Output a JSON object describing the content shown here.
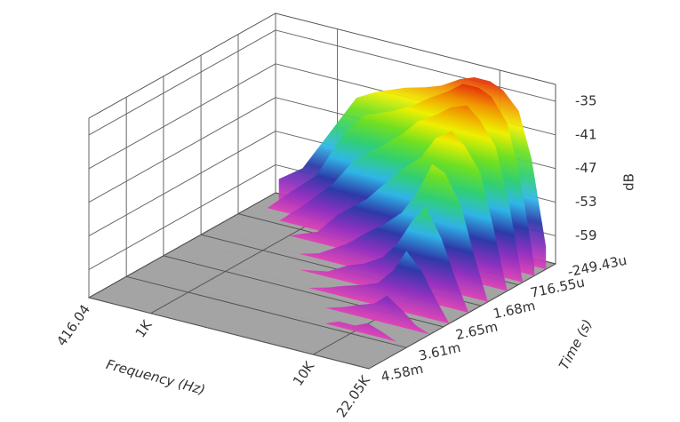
{
  "chart_data": {
    "type": "waterfall",
    "x_label": "Frequency (Hz)",
    "y_label": "Time (s)",
    "z_label": "dB",
    "xscale": "log",
    "xlim": [
      416.04,
      22050
    ],
    "xticks": [
      416.04,
      {
        "value": 1000,
        "label": "1K"
      },
      {
        "value": 10000,
        "label": "10K"
      },
      {
        "value": 22050,
        "label": "22.05K"
      }
    ],
    "ylim": [
      -0.00024943,
      0.00458
    ],
    "yticks": [
      {
        "value": -0.00024943,
        "label": "-249.43u"
      },
      {
        "value": 0.00071655,
        "label": "716.55u"
      },
      {
        "value": 0.00168,
        "label": "1.68m"
      },
      {
        "value": 0.00265,
        "label": "2.65m"
      },
      {
        "value": 0.00361,
        "label": "3.61m"
      },
      {
        "value": 0.00458,
        "label": "4.58m"
      }
    ],
    "zlim": [
      -64,
      -32
    ],
    "zticks": [
      -35,
      -41,
      -47,
      -53,
      -59
    ],
    "grid": true,
    "colormap": [
      "#e040b8",
      "#8a30c0",
      "#2a3aa8",
      "#30b8e8",
      "#30d070",
      "#70e020",
      "#f0f000",
      "#f09000",
      "#e01010"
    ],
    "x": [
      500,
      700,
      1000,
      1500,
      2000,
      3000,
      4000,
      5000,
      6500,
      8000,
      10000,
      12000,
      15000,
      18000,
      22050
    ],
    "slices": [
      {
        "time": 0,
        "values": [
          -60,
          -57,
          -50,
          -42,
          -40,
          -38,
          -37,
          -36,
          -34,
          -33,
          -33,
          -34,
          -37,
          -45,
          -60
        ]
      },
      {
        "time": 0.0003,
        "values": [
          -64,
          -60,
          -56,
          -47,
          -43,
          -41,
          -39,
          -37,
          -35,
          -33,
          -33,
          -34,
          -38,
          -47,
          -62
        ]
      },
      {
        "time": 0.0006,
        "values": [
          -64,
          -64,
          -60,
          -55,
          -50,
          -46,
          -43,
          -40,
          -38,
          -36,
          -35,
          -37,
          -41,
          -50,
          -64
        ]
      },
      {
        "time": 0.001,
        "values": [
          -64,
          -64,
          -64,
          -62,
          -58,
          -54,
          -50,
          -47,
          -44,
          -40,
          -38,
          -40,
          -44,
          -53,
          -64
        ]
      },
      {
        "time": 0.0015,
        "values": [
          -64,
          -64,
          -64,
          -64,
          -63,
          -60,
          -57,
          -55,
          -52,
          -48,
          -42,
          -43,
          -48,
          -56,
          -64
        ]
      },
      {
        "time": 0.002,
        "values": [
          -64,
          -64,
          -64,
          -64,
          -64,
          -63,
          -61,
          -60,
          -58,
          -55,
          -50,
          -47,
          -52,
          -58,
          -64
        ]
      },
      {
        "time": 0.0025,
        "values": [
          -64,
          -64,
          -64,
          -64,
          -64,
          -64,
          -63,
          -62,
          -61,
          -60,
          -57,
          -53,
          -56,
          -60,
          -64
        ]
      },
      {
        "time": 0.003,
        "values": [
          -64,
          -64,
          -64,
          -64,
          -64,
          -64,
          -64,
          -64,
          -63,
          -62,
          -61,
          -59,
          -61,
          -63,
          -64
        ]
      },
      {
        "time": 0.0035,
        "values": [
          -64,
          -64,
          -64,
          -64,
          -64,
          -64,
          -64,
          -64,
          -64,
          -63,
          -63,
          -62,
          -63,
          -64,
          -64
        ]
      }
    ]
  }
}
